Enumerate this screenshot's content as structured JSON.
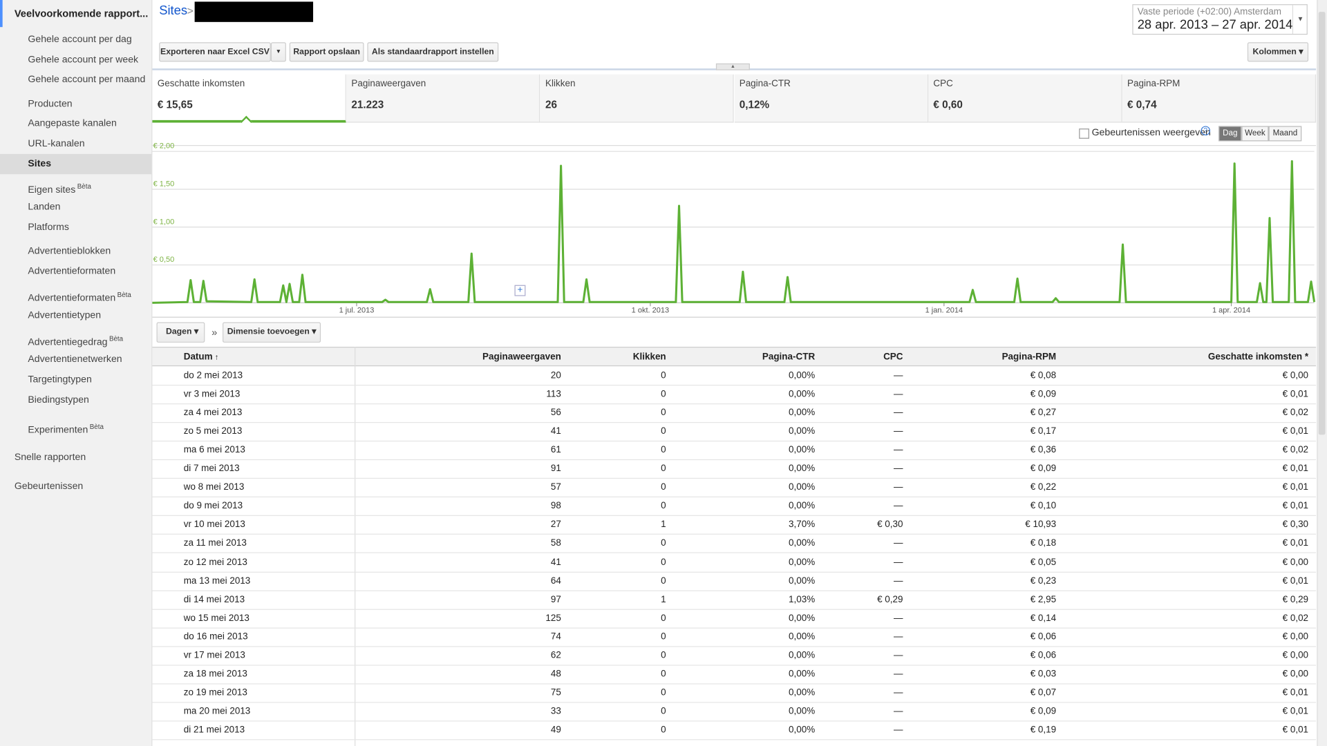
{
  "sidebar": {
    "title": "Veelvoorkomende rapport...",
    "groups": [
      [
        "Gehele account per dag",
        "Gehele account per week",
        "Gehele account per maand"
      ],
      [
        "Producten",
        "Aangepaste kanalen",
        "URL-kanalen",
        {
          "label": "Sites",
          "active": true
        }
      ],
      [
        {
          "label": "Eigen sites",
          "badge": "Bèta"
        },
        "Landen",
        "Platforms"
      ],
      [
        "Advertentieblokken",
        "Advertentieformaten",
        {
          "label": "Advertentieformaten",
          "badge": "Bèta"
        },
        "Advertentietypen",
        {
          "label": "Advertentiegedrag",
          "badge": "Bèta"
        },
        "Advertentienetwerken",
        "Targetingtypen",
        "Biedingstypen"
      ],
      [
        {
          "label": "Experimenten",
          "badge": "Bèta"
        }
      ]
    ],
    "links": [
      "Snelle rapporten",
      "Gebeurtenissen"
    ]
  },
  "header": {
    "breadcrumb": "Sites",
    "separator": ">"
  },
  "date_range": {
    "label": "Vaste periode (+02:00) Amsterdam",
    "value": "28 apr. 2013 – 27 apr. 2014"
  },
  "toolbar": {
    "buttons": [
      "Exporteren naar Excel CSV",
      "Rapport opslaan",
      "Als standaardrapport instellen"
    ],
    "columns_button": "Kolommen"
  },
  "metrics": [
    {
      "label": "Geschatte inkomsten",
      "value": "€ 15,65"
    },
    {
      "label": "Paginaweergaven",
      "value": "21.223"
    },
    {
      "label": "Klikken",
      "value": "26"
    },
    {
      "label": "Pagina-CTR",
      "value": "0,12%"
    },
    {
      "label": "CPC",
      "value": "€ 0,60"
    },
    {
      "label": "Pagina-RPM",
      "value": "€ 0,74"
    }
  ],
  "chart_controls": {
    "events_label": "Gebeurtenissen weergeven",
    "periods": [
      "Dag",
      "Week",
      "Maand"
    ]
  },
  "chart_data": {
    "type": "line",
    "color": "#5db135",
    "x": [
      "2013-04-28",
      "2013-05-09",
      "2013-05-10",
      "2013-05-11",
      "2013-05-13",
      "2013-05-14",
      "2013-05-15",
      "2013-05-29",
      "2013-05-30",
      "2013-05-31",
      "2013-06-07",
      "2013-06-08",
      "2013-06-09",
      "2013-06-10",
      "2013-06-11",
      "2013-06-13",
      "2013-06-14",
      "2013-06-15",
      "2013-07-09",
      "2013-07-10",
      "2013-07-11",
      "2013-07-23",
      "2013-07-24",
      "2013-07-25",
      "2013-08-05",
      "2013-08-06",
      "2013-08-07",
      "2013-09-02",
      "2013-09-03",
      "2013-09-04",
      "2013-09-10",
      "2013-09-11",
      "2013-09-12",
      "2013-10-09",
      "2013-10-10",
      "2013-10-11",
      "2013-10-29",
      "2013-10-30",
      "2013-10-31",
      "2013-11-12",
      "2013-11-13",
      "2013-11-14",
      "2014-01-09",
      "2014-01-10",
      "2014-01-11",
      "2014-01-23",
      "2014-01-24",
      "2014-01-25",
      "2014-02-04",
      "2014-02-05",
      "2014-02-06",
      "2014-02-25",
      "2014-02-26",
      "2014-02-27",
      "2014-04-01",
      "2014-04-02",
      "2014-04-03",
      "2014-04-09",
      "2014-04-10",
      "2014-04-11",
      "2014-04-12",
      "2014-04-13",
      "2014-04-14",
      "2014-04-19",
      "2014-04-20",
      "2014-04-21",
      "2014-04-25",
      "2014-04-26",
      "2014-04-27"
    ],
    "values": [
      0.0,
      0.01,
      0.3,
      0.01,
      0.01,
      0.29,
      0.02,
      0.01,
      0.31,
      0.01,
      0.01,
      0.23,
      0.01,
      0.25,
      0.01,
      0.01,
      0.37,
      0.01,
      0.01,
      0.04,
      0.01,
      0.01,
      0.18,
      0.01,
      0.01,
      0.65,
      0.01,
      0.01,
      1.81,
      0.01,
      0.01,
      0.31,
      0.01,
      0.01,
      1.28,
      0.01,
      0.01,
      0.41,
      0.01,
      0.01,
      0.34,
      0.01,
      0.01,
      0.17,
      0.01,
      0.01,
      0.32,
      0.01,
      0.01,
      0.06,
      0.01,
      0.01,
      0.77,
      0.01,
      0.01,
      1.84,
      0.01,
      0.01,
      0.26,
      0.01,
      0.01,
      1.12,
      0.01,
      0.01,
      1.87,
      0.01,
      0.01,
      0.28,
      0.01
    ],
    "xlim": [
      "2013-04-28",
      "2014-04-27"
    ],
    "xticks": [
      {
        "value": "2013-07-01",
        "label": "1 jul. 2013"
      },
      {
        "value": "2013-10-01",
        "label": "1 okt. 2013"
      },
      {
        "value": "2014-01-01",
        "label": "1 jan. 2014"
      },
      {
        "value": "2014-04-01",
        "label": "1 apr. 2014"
      }
    ],
    "ylim": [
      0,
      2
    ],
    "yticks": [
      {
        "value": 0.5,
        "label": "€ 0,50"
      },
      {
        "value": 1,
        "label": "€ 1,00"
      },
      {
        "value": 1.5,
        "label": "€ 1,50"
      },
      {
        "value": 2,
        "label": "€ 2,00"
      }
    ],
    "grid": true
  },
  "dimension_bar": {
    "group": "Dagen",
    "separator": "»",
    "add": "Dimensie toevoegen"
  },
  "table": {
    "columns": [
      "Datum",
      "Paginaweergaven",
      "Klikken",
      "Pagina-CTR",
      "CPC",
      "Pagina-RPM",
      "Geschatte inkomsten *"
    ],
    "rows": [
      [
        "do 2 mei 2013",
        "20",
        "0",
        "0,00%",
        "—",
        "€ 0,08",
        "€ 0,00"
      ],
      [
        "vr 3 mei 2013",
        "113",
        "0",
        "0,00%",
        "—",
        "€ 0,09",
        "€ 0,01"
      ],
      [
        "za 4 mei 2013",
        "56",
        "0",
        "0,00%",
        "—",
        "€ 0,27",
        "€ 0,02"
      ],
      [
        "zo 5 mei 2013",
        "41",
        "0",
        "0,00%",
        "—",
        "€ 0,17",
        "€ 0,01"
      ],
      [
        "ma 6 mei 2013",
        "61",
        "0",
        "0,00%",
        "—",
        "€ 0,36",
        "€ 0,02"
      ],
      [
        "di 7 mei 2013",
        "91",
        "0",
        "0,00%",
        "—",
        "€ 0,09",
        "€ 0,01"
      ],
      [
        "wo 8 mei 2013",
        "57",
        "0",
        "0,00%",
        "—",
        "€ 0,22",
        "€ 0,01"
      ],
      [
        "do 9 mei 2013",
        "98",
        "0",
        "0,00%",
        "—",
        "€ 0,10",
        "€ 0,01"
      ],
      [
        "vr 10 mei 2013",
        "27",
        "1",
        "3,70%",
        "€ 0,30",
        "€ 10,93",
        "€ 0,30"
      ],
      [
        "za 11 mei 2013",
        "58",
        "0",
        "0,00%",
        "—",
        "€ 0,18",
        "€ 0,01"
      ],
      [
        "zo 12 mei 2013",
        "41",
        "0",
        "0,00%",
        "—",
        "€ 0,05",
        "€ 0,00"
      ],
      [
        "ma 13 mei 2013",
        "64",
        "0",
        "0,00%",
        "—",
        "€ 0,23",
        "€ 0,01"
      ],
      [
        "di 14 mei 2013",
        "97",
        "1",
        "1,03%",
        "€ 0,29",
        "€ 2,95",
        "€ 0,29"
      ],
      [
        "wo 15 mei 2013",
        "125",
        "0",
        "0,00%",
        "—",
        "€ 0,14",
        "€ 0,02"
      ],
      [
        "do 16 mei 2013",
        "74",
        "0",
        "0,00%",
        "—",
        "€ 0,06",
        "€ 0,00"
      ],
      [
        "vr 17 mei 2013",
        "62",
        "0",
        "0,00%",
        "—",
        "€ 0,06",
        "€ 0,00"
      ],
      [
        "za 18 mei 2013",
        "48",
        "0",
        "0,00%",
        "—",
        "€ 0,03",
        "€ 0,00"
      ],
      [
        "zo 19 mei 2013",
        "75",
        "0",
        "0,00%",
        "—",
        "€ 0,07",
        "€ 0,01"
      ],
      [
        "ma 20 mei 2013",
        "33",
        "0",
        "0,00%",
        "—",
        "€ 0,09",
        "€ 0,01"
      ],
      [
        "di 21 mei 2013",
        "49",
        "0",
        "0,00%",
        "—",
        "€ 0,19",
        "€ 0,01"
      ]
    ]
  }
}
